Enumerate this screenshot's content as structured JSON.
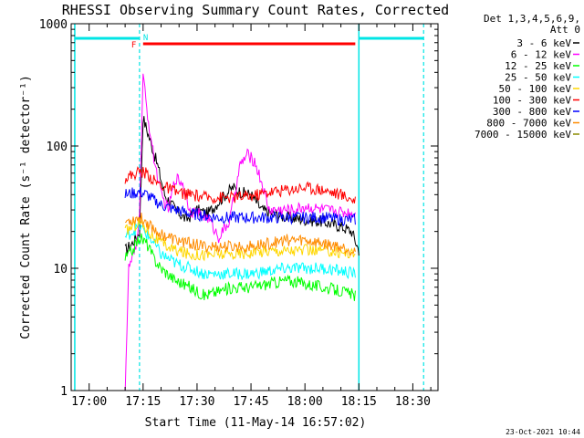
{
  "chart_data": {
    "type": "line",
    "title": "RHESSI Observing Summary Count Rates, Corrected",
    "xlabel": "Start Time (11-May-14 16:57:02)",
    "ylabel": "Corrected Count Rate (s⁻¹ detector⁻¹)",
    "y_scale": "log",
    "ylim": [
      1,
      1000
    ],
    "y_ticks": [
      {
        "value": 1,
        "label": "1"
      },
      {
        "value": 10,
        "label": "10"
      },
      {
        "value": 100,
        "label": "100"
      },
      {
        "value": 1000,
        "label": "1000"
      }
    ],
    "xlim": [
      "16:55",
      "18:37"
    ],
    "x_ticks": [
      {
        "value": "17:00",
        "label": "17:00"
      },
      {
        "value": "17:15",
        "label": "17:15"
      },
      {
        "value": "17:30",
        "label": "17:30"
      },
      {
        "value": "17:45",
        "label": "17:45"
      },
      {
        "value": "18:00",
        "label": "18:00"
      },
      {
        "value": "18:15",
        "label": "18:15"
      },
      {
        "value": "18:30",
        "label": "18:30"
      }
    ],
    "legend_header": [
      "Det 1,3,4,5,6,9,",
      "Att 0"
    ],
    "legend_position": "right",
    "night_markers": {
      "label": "N",
      "color": "#00e5e5",
      "solid_lines": [
        "16:56",
        "18:15"
      ],
      "dashed_lines": [
        "17:14",
        "18:33"
      ],
      "bars": [
        [
          "16:56",
          "17:14"
        ],
        [
          "18:15",
          "18:33"
        ]
      ]
    },
    "flare_flag": {
      "label": "F",
      "color": "#ff0000",
      "range": [
        "17:15",
        "18:14"
      ]
    },
    "footer_timestamp": "23-Oct-2021 10:44",
    "series": [
      {
        "name": "3 - 6 keV",
        "color": "#000000",
        "x": [
          "17:10",
          "17:12",
          "17:14",
          "17:15",
          "17:17",
          "17:19",
          "17:21",
          "17:24",
          "17:27",
          "17:30",
          "17:33",
          "17:36",
          "17:40",
          "17:42",
          "17:45",
          "17:48",
          "17:51",
          "17:55",
          "18:00",
          "18:05",
          "18:10",
          "18:13",
          "18:15"
        ],
        "y": [
          14,
          16,
          20,
          170,
          110,
          70,
          40,
          30,
          25,
          30,
          28,
          35,
          46,
          42,
          40,
          30,
          28,
          26,
          25,
          24,
          22,
          20,
          14
        ]
      },
      {
        "name": "6 - 12 keV",
        "color": "#ff00ff",
        "x": [
          "17:10",
          "17:11",
          "17:12",
          "17:13",
          "17:14",
          "17:15",
          "17:16",
          "17:18",
          "17:20",
          "17:22",
          "17:24",
          "17:26",
          "17:28",
          "17:30",
          "17:33",
          "17:36",
          "17:39",
          "17:42",
          "17:44",
          "17:46",
          "17:48",
          "17:50",
          "17:53",
          "17:57",
          "18:00",
          "18:05",
          "18:10",
          "18:14"
        ],
        "y": [
          1,
          10,
          12,
          14,
          30,
          380,
          200,
          80,
          40,
          30,
          55,
          50,
          30,
          28,
          26,
          18,
          24,
          70,
          85,
          75,
          50,
          30,
          30,
          30,
          32,
          30,
          29,
          28
        ]
      },
      {
        "name": "12 - 25 keV",
        "color": "#00ff00",
        "x": [
          "17:10",
          "17:12",
          "17:14",
          "17:16",
          "17:18",
          "17:20",
          "17:24",
          "17:28",
          "17:32",
          "17:36",
          "17:40",
          "17:45",
          "17:50",
          "17:55",
          "18:00",
          "18:05",
          "18:10",
          "18:14"
        ],
        "y": [
          12,
          14,
          18,
          16,
          12,
          10,
          8,
          7,
          6,
          6.5,
          7,
          7,
          7.5,
          8,
          7.5,
          7,
          6.5,
          6
        ]
      },
      {
        "name": "25 - 50 keV",
        "color": "#00ffff",
        "x": [
          "17:10",
          "17:12",
          "17:14",
          "17:16",
          "17:18",
          "17:20",
          "17:24",
          "17:28",
          "17:32",
          "17:36",
          "17:40",
          "17:45",
          "17:50",
          "17:55",
          "18:00",
          "18:05",
          "18:10",
          "18:14"
        ],
        "y": [
          18,
          20,
          22,
          19,
          16,
          13,
          11,
          10,
          9,
          9,
          9,
          9,
          9.5,
          10,
          10,
          10,
          9.5,
          9
        ]
      },
      {
        "name": "50 - 100 keV",
        "color": "#ffd700",
        "x": [
          "17:10",
          "17:12",
          "17:14",
          "17:16",
          "17:18",
          "17:20",
          "17:24",
          "17:28",
          "17:32",
          "17:36",
          "17:40",
          "17:45",
          "17:50",
          "17:55",
          "18:00",
          "18:05",
          "18:10",
          "18:14"
        ],
        "y": [
          20,
          22,
          24,
          21,
          18,
          16,
          14,
          13,
          13,
          13,
          13,
          13.5,
          14,
          14,
          14,
          14,
          13.5,
          13
        ]
      },
      {
        "name": "100 - 300 keV",
        "color": "#ff0000",
        "x": [
          "17:10",
          "17:12",
          "17:14",
          "17:16",
          "17:18",
          "17:20",
          "17:24",
          "17:28",
          "17:32",
          "17:36",
          "17:40",
          "17:45",
          "17:50",
          "17:55",
          "18:00",
          "18:05",
          "18:10",
          "18:14"
        ],
        "y": [
          55,
          58,
          62,
          60,
          52,
          48,
          42,
          40,
          38,
          38,
          38,
          39,
          42,
          44,
          46,
          44,
          40,
          36
        ]
      },
      {
        "name": "300 - 800 keV",
        "color": "#0000ff",
        "x": [
          "17:10",
          "17:12",
          "17:14",
          "17:16",
          "17:18",
          "17:20",
          "17:24",
          "17:28",
          "17:32",
          "17:36",
          "17:40",
          "17:45",
          "17:50",
          "17:55",
          "18:00",
          "18:05",
          "18:10",
          "18:14"
        ],
        "y": [
          40,
          41,
          42,
          40,
          36,
          33,
          30,
          28,
          27,
          26,
          26,
          26,
          26,
          26,
          26,
          26,
          25,
          25
        ]
      },
      {
        "name": "800 - 7000 keV",
        "color": "#ff8c00",
        "x": [
          "17:10",
          "17:12",
          "17:14",
          "17:16",
          "17:18",
          "17:20",
          "17:24",
          "17:28",
          "17:32",
          "17:36",
          "17:40",
          "17:45",
          "17:50",
          "17:55",
          "18:00",
          "18:05",
          "18:10",
          "18:14"
        ],
        "y": [
          24,
          25,
          26,
          24,
          21,
          19,
          17,
          16,
          15,
          15,
          15,
          15,
          16,
          17,
          17,
          16,
          15,
          14
        ]
      },
      {
        "name": "7000 - 15000 keV",
        "color": "#8b8b00",
        "x": [],
        "y": []
      }
    ]
  }
}
